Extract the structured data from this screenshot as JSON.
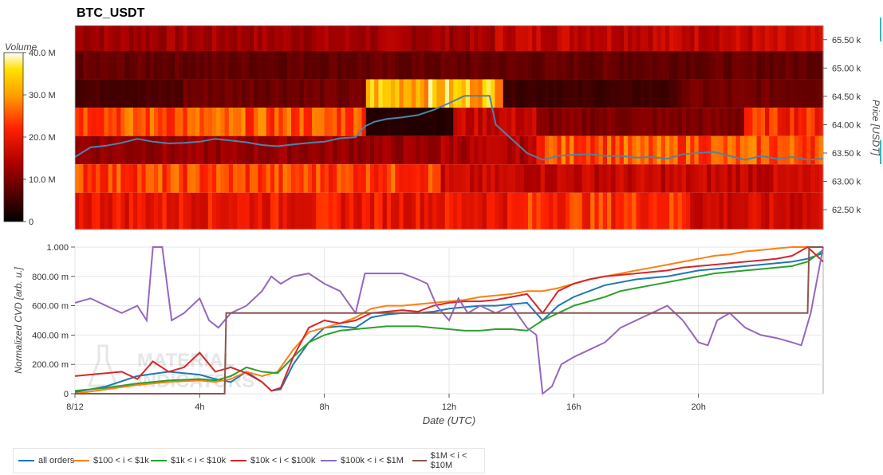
{
  "title": "BTC_USDT",
  "colorbar": {
    "label": "Volume",
    "ticks": [
      "40.0 M",
      "30.0 M",
      "20.0 M",
      "10.0 M",
      "0"
    ],
    "tick_values": [
      40,
      30,
      20,
      10,
      0
    ],
    "max": 40
  },
  "heatmap": {
    "price_axis_label": "Price [USDT]",
    "price_ticks": [
      "65.50 k",
      "65.00 k",
      "64.50 k",
      "64.00 k",
      "63.50 k",
      "63.00 k",
      "62.50 k"
    ],
    "price_tick_values": [
      65500,
      65000,
      64500,
      64000,
      63500,
      63000,
      62500
    ],
    "price_range": [
      62150,
      65750
    ],
    "band_edges": [
      65750,
      65300,
      64800,
      64300,
      63800,
      63300,
      62800,
      62150
    ]
  },
  "chart_data": [
    {
      "type": "heatmap",
      "title": "BTC_USDT",
      "x_range_hours": [
        0,
        24
      ],
      "ylabel": "Price [USDT]",
      "colorbar_label": "Volume",
      "bands": [
        {
          "price_from": 65300,
          "price_to": 65750,
          "segments": [
            [
              0,
              13.5,
              13
            ],
            [
              13.5,
              24,
              16
            ]
          ]
        },
        {
          "price_from": 64800,
          "price_to": 65300,
          "segments": [
            [
              0,
              24,
              8
            ]
          ]
        },
        {
          "price_from": 64300,
          "price_to": 64800,
          "segments": [
            [
              0,
              3.5,
              6
            ],
            [
              3.5,
              9.3,
              9
            ],
            [
              9.3,
              13.8,
              33
            ],
            [
              13.8,
              19.3,
              5
            ],
            [
              19.3,
              24,
              9
            ]
          ]
        },
        {
          "price_from": 63800,
          "price_to": 64300,
          "segments": [
            [
              0,
              9.3,
              25
            ],
            [
              9.3,
              12.1,
              3
            ],
            [
              12.1,
              14.8,
              16
            ],
            [
              14.8,
              21.5,
              10
            ],
            [
              21.5,
              24,
              22
            ]
          ]
        },
        {
          "price_from": 63300,
          "price_to": 63800,
          "segments": [
            [
              0,
              11.7,
              12
            ],
            [
              11.7,
              14.8,
              14
            ],
            [
              14.8,
              24,
              25
            ]
          ]
        },
        {
          "price_from": 62800,
          "price_to": 63300,
          "segments": [
            [
              0,
              11.7,
              24
            ],
            [
              11.7,
              24,
              16
            ]
          ]
        },
        {
          "price_from": 62150,
          "price_to": 62800,
          "segments": [
            [
              0,
              14.4,
              20
            ],
            [
              14.4,
              19.8,
              23
            ],
            [
              19.8,
              24,
              17
            ]
          ]
        }
      ],
      "price_line": {
        "name": "",
        "x": [
          0,
          0.5,
          1,
          1.5,
          2,
          2.5,
          3,
          3.5,
          4,
          4.5,
          5,
          5.5,
          6,
          6.5,
          7,
          7.5,
          8,
          8.5,
          9,
          9.3,
          9.6,
          10,
          10.5,
          11,
          11.5,
          12,
          12.5,
          13,
          13.3,
          13.5,
          14,
          14.5,
          15,
          15.5,
          16,
          16.5,
          17,
          17.5,
          18,
          18.5,
          19,
          19.5,
          20,
          20.5,
          21,
          21.5,
          22,
          22.5,
          23,
          23.5,
          24
        ],
        "y": [
          63430,
          63600,
          63630,
          63680,
          63750,
          63700,
          63670,
          63680,
          63700,
          63750,
          63720,
          63690,
          63640,
          63620,
          63650,
          63680,
          63700,
          63760,
          63780,
          63970,
          64050,
          64100,
          64130,
          64170,
          64260,
          64380,
          64510,
          64510,
          64510,
          64000,
          63750,
          63500,
          63380,
          63450,
          63470,
          63480,
          63450,
          63450,
          63420,
          63430,
          63400,
          63480,
          63500,
          63520,
          63450,
          63380,
          63450,
          63400,
          63430,
          63380,
          63400
        ]
      }
    },
    {
      "type": "line",
      "xlabel": "Date (UTC)",
      "ylabel": "Normalized CVD [arb. u.]",
      "x_ticks": [
        "8/12",
        "4h",
        "8h",
        "12h",
        "16h",
        "20h"
      ],
      "x_tick_values": [
        0,
        4,
        8,
        12,
        16,
        20
      ],
      "x_range": [
        0,
        24
      ],
      "y_ticks": [
        "0",
        "200.00 m",
        "400.00 m",
        "600.00 m",
        "800.00 m",
        "1.000"
      ],
      "y_tick_values": [
        0,
        0.2,
        0.4,
        0.6,
        0.8,
        1.0
      ],
      "ylim": [
        0,
        1
      ],
      "grid": true,
      "legend_position": "bottom",
      "series": [
        {
          "name": "all orders",
          "color": "#1f77b4",
          "x": [
            0,
            1,
            2,
            3,
            4,
            4.5,
            5,
            5.5,
            6,
            6.3,
            6.6,
            7,
            7.5,
            8,
            8.5,
            9,
            9.5,
            10,
            10.5,
            11,
            11.5,
            12,
            12.5,
            13,
            13.5,
            14,
            14.5,
            15,
            15.5,
            16,
            16.5,
            17,
            17.5,
            18,
            18.5,
            19,
            19.5,
            20,
            20.5,
            21,
            21.5,
            22,
            22.5,
            23,
            23.5,
            24
          ],
          "y": [
            0.01,
            0.05,
            0.12,
            0.15,
            0.13,
            0.1,
            0.08,
            0.15,
            0.08,
            0.02,
            0.03,
            0.2,
            0.35,
            0.45,
            0.46,
            0.45,
            0.52,
            0.54,
            0.55,
            0.55,
            0.56,
            0.58,
            0.59,
            0.6,
            0.6,
            0.61,
            0.62,
            0.5,
            0.6,
            0.66,
            0.7,
            0.74,
            0.76,
            0.78,
            0.79,
            0.8,
            0.82,
            0.84,
            0.85,
            0.86,
            0.87,
            0.88,
            0.89,
            0.9,
            0.92,
            0.96
          ]
        },
        {
          "name": "$100 < i < $1k",
          "color": "#ff7f0e",
          "x": [
            0,
            1,
            2,
            3,
            4,
            4.5,
            5,
            5.5,
            6,
            6.5,
            7,
            7.5,
            8,
            8.5,
            9,
            9.5,
            10,
            10.5,
            11,
            11.5,
            12,
            12.5,
            13,
            13.5,
            14,
            14.5,
            15,
            15.5,
            16,
            16.5,
            17,
            17.5,
            18,
            18.5,
            19,
            19.5,
            20,
            20.5,
            21,
            21.5,
            22,
            22.5,
            23,
            23.5,
            24
          ],
          "y": [
            0.0,
            0.03,
            0.06,
            0.08,
            0.09,
            0.08,
            0.1,
            0.15,
            0.12,
            0.15,
            0.3,
            0.42,
            0.45,
            0.48,
            0.52,
            0.58,
            0.6,
            0.6,
            0.61,
            0.62,
            0.63,
            0.64,
            0.66,
            0.67,
            0.68,
            0.7,
            0.7,
            0.72,
            0.75,
            0.78,
            0.8,
            0.82,
            0.84,
            0.86,
            0.88,
            0.9,
            0.92,
            0.94,
            0.95,
            0.97,
            0.98,
            0.99,
            1.0,
            1.0,
            1.0
          ]
        },
        {
          "name": "$1k < i < $10k",
          "color": "#2ca02c",
          "x": [
            0,
            1,
            2,
            3,
            4,
            4.5,
            5,
            5.5,
            6,
            6.5,
            7,
            7.5,
            8,
            8.5,
            9,
            9.5,
            10,
            10.5,
            11,
            11.5,
            12,
            12.5,
            13,
            13.5,
            14,
            14.5,
            15,
            15.5,
            16,
            16.5,
            17,
            17.5,
            18,
            18.5,
            19,
            19.5,
            20,
            20.5,
            21,
            21.5,
            22,
            22.5,
            23,
            23.5,
            24
          ],
          "y": [
            0.02,
            0.04,
            0.07,
            0.09,
            0.1,
            0.09,
            0.12,
            0.18,
            0.15,
            0.14,
            0.25,
            0.35,
            0.4,
            0.43,
            0.44,
            0.45,
            0.46,
            0.46,
            0.46,
            0.45,
            0.44,
            0.43,
            0.43,
            0.44,
            0.44,
            0.43,
            0.5,
            0.55,
            0.6,
            0.63,
            0.66,
            0.7,
            0.72,
            0.74,
            0.76,
            0.78,
            0.8,
            0.82,
            0.83,
            0.84,
            0.85,
            0.86,
            0.87,
            0.9,
            0.98
          ]
        },
        {
          "name": "$10k < i < $100k",
          "color": "#d62728",
          "x": [
            0,
            1,
            1.5,
            2,
            2.5,
            3,
            3.5,
            4,
            4.5,
            5,
            5.5,
            6,
            6.3,
            6.6,
            7,
            7.5,
            8,
            8.5,
            9,
            9.5,
            10,
            10.5,
            11,
            11.5,
            12,
            12.5,
            13,
            13.5,
            14,
            14.5,
            15,
            15.5,
            16,
            16.5,
            17,
            17.5,
            18,
            18.5,
            19,
            19.5,
            20,
            20.5,
            21,
            21.5,
            22,
            22.5,
            23,
            23.5,
            24
          ],
          "y": [
            0.12,
            0.14,
            0.15,
            0.1,
            0.22,
            0.15,
            0.18,
            0.28,
            0.15,
            0.18,
            0.14,
            0.08,
            0.02,
            0.04,
            0.25,
            0.45,
            0.5,
            0.48,
            0.5,
            0.55,
            0.56,
            0.57,
            0.56,
            0.6,
            0.62,
            0.63,
            0.63,
            0.64,
            0.66,
            0.68,
            0.55,
            0.7,
            0.75,
            0.78,
            0.8,
            0.81,
            0.82,
            0.83,
            0.84,
            0.86,
            0.87,
            0.88,
            0.89,
            0.9,
            0.91,
            0.92,
            0.94,
            1.0,
            0.9
          ]
        },
        {
          "name": "$100k < i < $1M",
          "color": "#9467bd",
          "x": [
            0,
            0.5,
            1,
            1.5,
            2,
            2.3,
            2.5,
            2.8,
            3.1,
            3.5,
            4,
            4.3,
            4.6,
            5,
            5.5,
            6,
            6.3,
            6.6,
            7,
            7.5,
            8,
            8.5,
            9,
            9.3,
            9.6,
            10,
            10.5,
            11,
            11.3,
            11.6,
            12,
            12.3,
            12.6,
            13,
            13.5,
            14,
            14.5,
            14.8,
            15,
            15.3,
            15.6,
            16,
            16.5,
            17,
            17.5,
            18,
            18.5,
            19,
            19.5,
            20,
            20.3,
            20.6,
            21,
            21.5,
            22,
            22.5,
            23,
            23.3,
            23.6,
            24
          ],
          "y": [
            0.62,
            0.65,
            0.6,
            0.55,
            0.6,
            0.5,
            1.0,
            1.0,
            0.5,
            0.55,
            0.65,
            0.5,
            0.45,
            0.55,
            0.6,
            0.7,
            0.8,
            0.75,
            0.8,
            0.82,
            0.75,
            0.7,
            0.55,
            0.82,
            0.82,
            0.82,
            0.82,
            0.78,
            0.75,
            0.6,
            0.5,
            0.65,
            0.55,
            0.6,
            0.55,
            0.6,
            0.45,
            0.4,
            0.0,
            0.05,
            0.2,
            0.25,
            0.3,
            0.35,
            0.45,
            0.5,
            0.55,
            0.6,
            0.5,
            0.35,
            0.33,
            0.5,
            0.55,
            0.45,
            0.4,
            0.38,
            0.35,
            0.33,
            0.55,
            1.0
          ]
        },
        {
          "name": "$1M < i < $10M",
          "color": "#8c564b",
          "x": [
            0,
            4.8,
            4.85,
            23.5,
            23.55,
            24
          ],
          "y": [
            0.0,
            0.0,
            0.55,
            0.55,
            1.0,
            1.0
          ]
        }
      ]
    }
  ]
}
